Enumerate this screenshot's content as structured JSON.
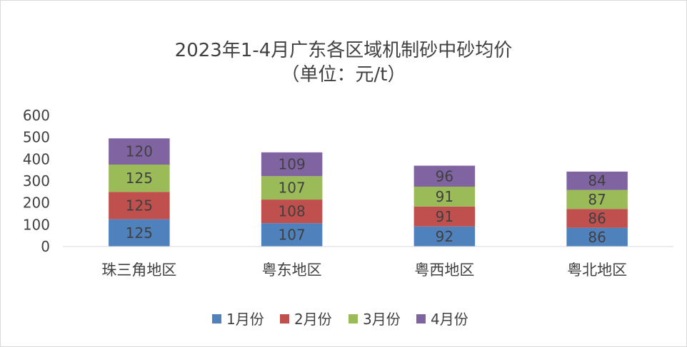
{
  "chart_data": {
    "type": "bar",
    "stacked": true,
    "title": "2023年1-4月广东各区域机制砂中砂均价",
    "subtitle": "（单位：元/t）",
    "categories": [
      "珠三角地区",
      "粤东地区",
      "粤西地区",
      "粤北地区"
    ],
    "series": [
      {
        "name": "1月份",
        "color": "#4f81bd",
        "values": [
          125,
          107,
          92,
          86
        ]
      },
      {
        "name": "2月份",
        "color": "#c0504d",
        "values": [
          125,
          108,
          91,
          86
        ]
      },
      {
        "name": "3月份",
        "color": "#9bbb59",
        "values": [
          125,
          107,
          91,
          87
        ]
      },
      {
        "name": "4月份",
        "color": "#8064a2",
        "values": [
          120,
          109,
          96,
          84
        ]
      }
    ],
    "yticks": [
      "0",
      "100",
      "200",
      "300",
      "400",
      "500",
      "600"
    ],
    "ylim": [
      0,
      600
    ],
    "grid": false,
    "legend_position": "bottom",
    "xlabel": "",
    "ylabel": ""
  }
}
